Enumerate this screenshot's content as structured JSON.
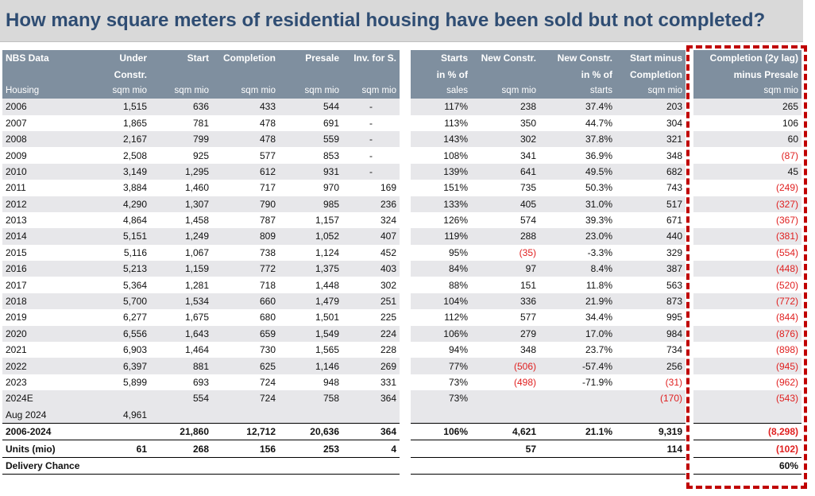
{
  "title": "How many square meters of residential housing have been sold but not completed?",
  "left": {
    "headers": [
      {
        "top": "NBS Data",
        "mid": "",
        "bottom": "Housing"
      },
      {
        "top": "Under",
        "mid": "Constr.",
        "bottom": "sqm mio"
      },
      {
        "top": "Start",
        "mid": "",
        "bottom": "sqm mio"
      },
      {
        "top": "Completion",
        "mid": "",
        "bottom": "sqm mio"
      },
      {
        "top": "Presale",
        "mid": "",
        "bottom": "sqm mio"
      },
      {
        "top": "Inv. for S.",
        "mid": "",
        "bottom": "sqm mio"
      }
    ],
    "rows": [
      [
        "2006",
        "1,515",
        "636",
        "433",
        "544",
        "-"
      ],
      [
        "2007",
        "1,865",
        "781",
        "478",
        "691",
        "-"
      ],
      [
        "2008",
        "2,167",
        "799",
        "478",
        "559",
        "-"
      ],
      [
        "2009",
        "2,508",
        "925",
        "577",
        "853",
        "-"
      ],
      [
        "2010",
        "3,149",
        "1,295",
        "612",
        "931",
        "-"
      ],
      [
        "2011",
        "3,884",
        "1,460",
        "717",
        "970",
        "169"
      ],
      [
        "2012",
        "4,290",
        "1,307",
        "790",
        "985",
        "236"
      ],
      [
        "2013",
        "4,864",
        "1,458",
        "787",
        "1,157",
        "324"
      ],
      [
        "2014",
        "5,151",
        "1,249",
        "809",
        "1,052",
        "407"
      ],
      [
        "2015",
        "5,116",
        "1,067",
        "738",
        "1,124",
        "452"
      ],
      [
        "2016",
        "5,213",
        "1,159",
        "772",
        "1,375",
        "403"
      ],
      [
        "2017",
        "5,364",
        "1,281",
        "718",
        "1,448",
        "302"
      ],
      [
        "2018",
        "5,700",
        "1,534",
        "660",
        "1,479",
        "251"
      ],
      [
        "2019",
        "6,277",
        "1,675",
        "680",
        "1,501",
        "225"
      ],
      [
        "2020",
        "6,556",
        "1,643",
        "659",
        "1,549",
        "224"
      ],
      [
        "2021",
        "6,903",
        "1,464",
        "730",
        "1,565",
        "228"
      ],
      [
        "2022",
        "6,397",
        "881",
        "625",
        "1,146",
        "269"
      ],
      [
        "2023",
        "5,899",
        "693",
        "724",
        "948",
        "331"
      ],
      [
        "2024E",
        "",
        "554",
        "724",
        "758",
        "364"
      ]
    ],
    "aug": [
      "Aug 2024",
      "4,961",
      "",
      "",
      "",
      ""
    ],
    "total": [
      "2006-2024",
      "",
      "21,860",
      "12,712",
      "20,636",
      "364"
    ],
    "units": [
      "Units (mio)",
      "61",
      "268",
      "156",
      "253",
      "4"
    ],
    "delivery": [
      "Delivery Chance",
      "",
      "",
      "",
      "",
      ""
    ]
  },
  "mid": {
    "headers": [
      {
        "top": "Starts",
        "mid": "in % of",
        "bottom": "sales"
      },
      {
        "top": "New Constr.",
        "mid": "",
        "bottom": "sqm mio"
      },
      {
        "top": "New Constr.",
        "mid": "in % of",
        "bottom": "starts"
      },
      {
        "top": "Start minus",
        "mid": "Completion",
        "bottom": "sqm mio"
      }
    ],
    "rows": [
      [
        "117%",
        "238",
        "37.4%",
        "203"
      ],
      [
        "113%",
        "350",
        "44.7%",
        "304"
      ],
      [
        "143%",
        "302",
        "37.8%",
        "321"
      ],
      [
        "108%",
        "341",
        "36.9%",
        "348"
      ],
      [
        "139%",
        "641",
        "49.5%",
        "682"
      ],
      [
        "151%",
        "735",
        "50.3%",
        "743"
      ],
      [
        "133%",
        "405",
        "31.0%",
        "517"
      ],
      [
        "126%",
        "574",
        "39.3%",
        "671"
      ],
      [
        "119%",
        "288",
        "23.0%",
        "440"
      ],
      [
        "95%",
        "(35)",
        "-3.3%",
        "329"
      ],
      [
        "84%",
        "97",
        "8.4%",
        "387"
      ],
      [
        "88%",
        "151",
        "11.8%",
        "563"
      ],
      [
        "104%",
        "336",
        "21.9%",
        "873"
      ],
      [
        "112%",
        "577",
        "34.4%",
        "995"
      ],
      [
        "106%",
        "279",
        "17.0%",
        "984"
      ],
      [
        "94%",
        "348",
        "23.7%",
        "734"
      ],
      [
        "77%",
        "(506)",
        "-57.4%",
        "256"
      ],
      [
        "73%",
        "(498)",
        "-71.9%",
        "(31)"
      ],
      [
        "73%",
        "",
        "",
        "(170)"
      ]
    ],
    "aug": [
      "",
      "",
      "",
      ""
    ],
    "total": [
      "106%",
      "4,621",
      "21.1%",
      "9,319"
    ],
    "units": [
      "",
      "57",
      "",
      "114"
    ],
    "delivery": [
      "",
      "",
      "",
      ""
    ]
  },
  "right": {
    "headers": [
      {
        "top": "Completion (2y lag)",
        "mid": "minus Presale",
        "bottom": "sqm mio"
      }
    ],
    "rows": [
      [
        "265"
      ],
      [
        "106"
      ],
      [
        "60"
      ],
      [
        "(87)"
      ],
      [
        "45"
      ],
      [
        "(249)"
      ],
      [
        "(327)"
      ],
      [
        "(367)"
      ],
      [
        "(381)"
      ],
      [
        "(554)"
      ],
      [
        "(448)"
      ],
      [
        "(520)"
      ],
      [
        "(772)"
      ],
      [
        "(844)"
      ],
      [
        "(876)"
      ],
      [
        "(898)"
      ],
      [
        "(945)"
      ],
      [
        "(962)"
      ],
      [
        "(543)"
      ]
    ],
    "aug": [
      ""
    ],
    "total": [
      "(8,298)"
    ],
    "units": [
      "(102)"
    ],
    "delivery": [
      "60%"
    ]
  },
  "colors": {
    "title": "#2f4d73",
    "header_bg": "#7f8f9f",
    "negative": "#e02020",
    "frame": "#c00000"
  }
}
